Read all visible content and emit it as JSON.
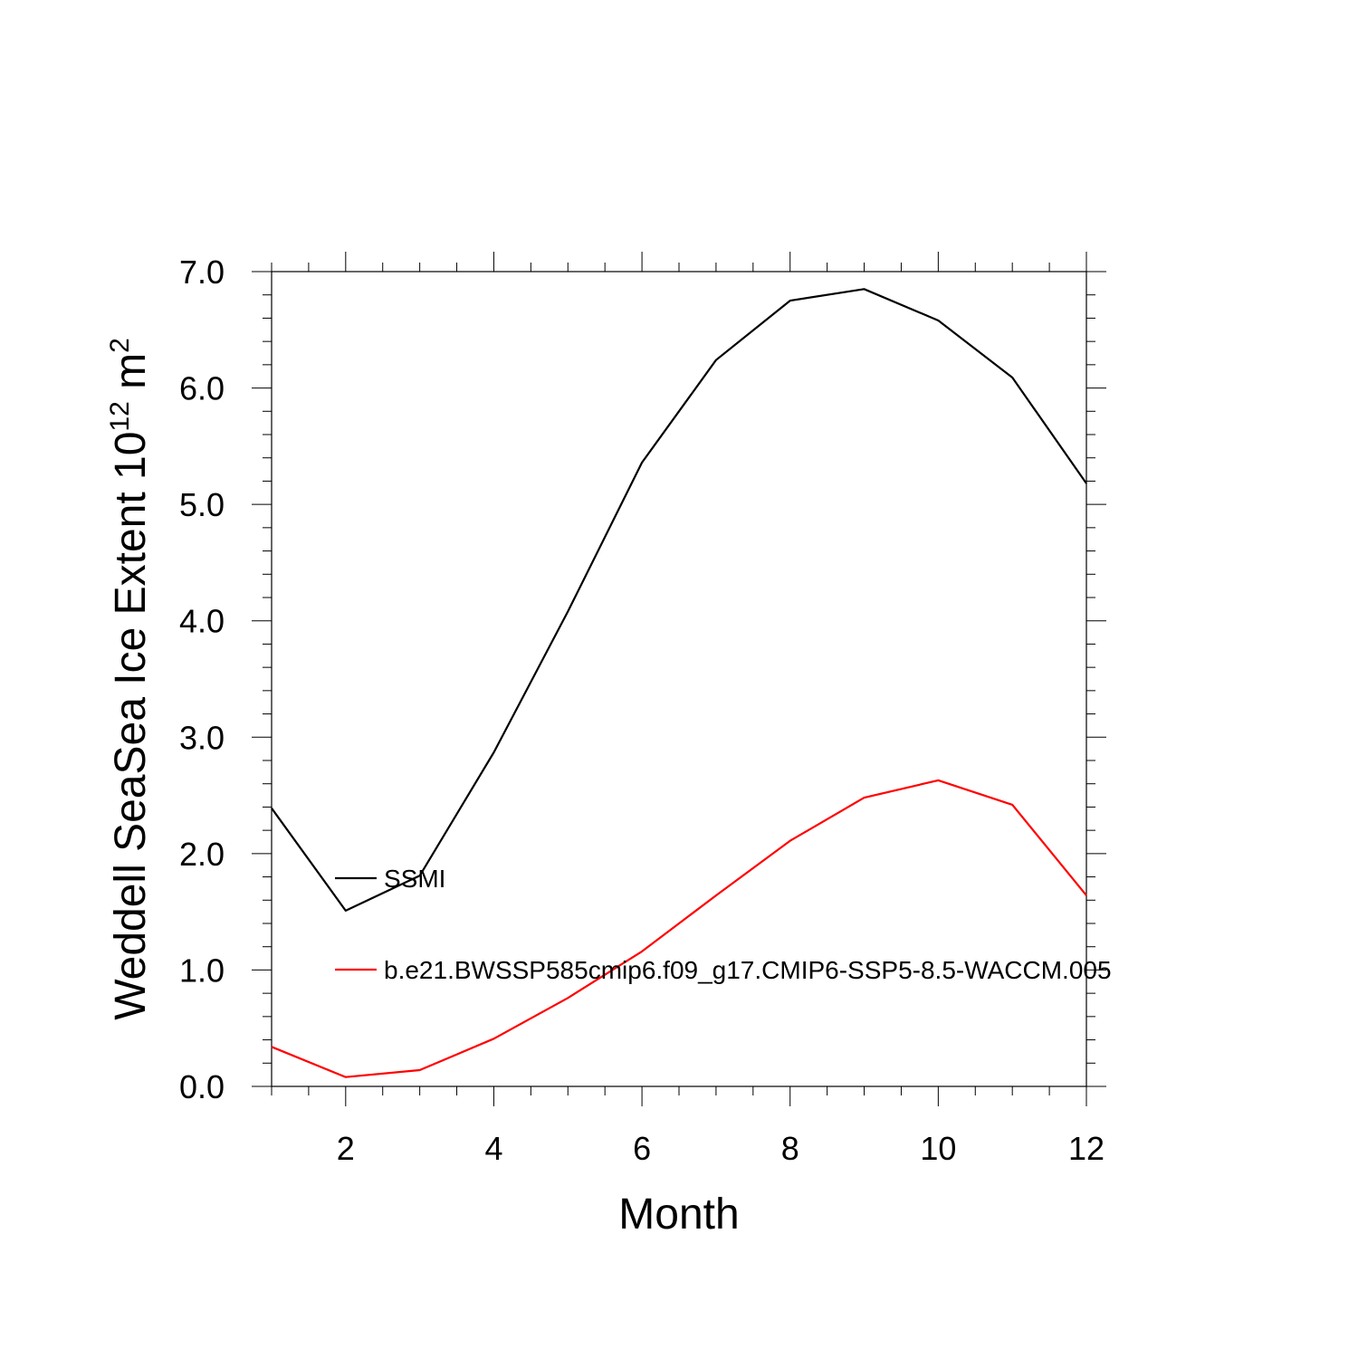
{
  "chart_data": {
    "type": "line",
    "xlabel": "Month",
    "ylabel": {
      "text": "Weddell SeaSea Ice Extent 10",
      "sup1": "12",
      "mid": " m",
      "sup2": "2"
    },
    "xlim": [
      1,
      12
    ],
    "ylim": [
      0,
      7
    ],
    "x_ticks": [
      2,
      4,
      6,
      8,
      10,
      12
    ],
    "y_ticks": [
      "0.0",
      "1.0",
      "2.0",
      "3.0",
      "4.0",
      "5.0",
      "6.0",
      "7.0"
    ],
    "grid": false,
    "legend_position": "inside-left",
    "x": [
      1,
      2,
      3,
      4,
      5,
      6,
      7,
      8,
      9,
      10,
      11,
      12
    ],
    "series": [
      {
        "name": "SSMI",
        "color": "#000000",
        "values": [
          2.39,
          1.51,
          1.81,
          2.87,
          4.08,
          5.36,
          6.24,
          6.75,
          6.85,
          6.58,
          6.09,
          5.18
        ]
      },
      {
        "name": "b.e21.BWSSP585cmip6.f09_g17.CMIP6-SSP5-8.5-WACCM.005",
        "color": "#ff0000",
        "values": [
          0.34,
          0.08,
          0.14,
          0.41,
          0.76,
          1.16,
          1.64,
          2.11,
          2.48,
          2.63,
          2.42,
          1.64
        ]
      }
    ]
  }
}
